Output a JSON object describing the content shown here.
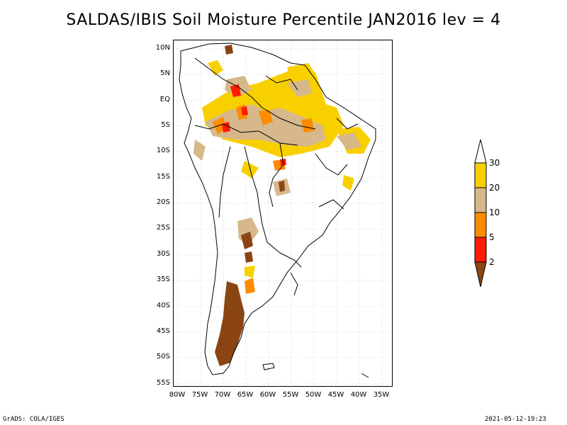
{
  "title": "SALDAS/IBIS Soil Moisture Percentile JAN2016 lev = 4",
  "map": {
    "lat_labels": [
      "10N",
      "5N",
      "EQ",
      "5S",
      "10S",
      "15S",
      "20S",
      "25S",
      "30S",
      "35S",
      "40S",
      "45S",
      "50S",
      "55S"
    ],
    "lon_labels": [
      "80W",
      "75W",
      "70W",
      "65W",
      "60W",
      "55W",
      "50W",
      "45W",
      "40W",
      "35W"
    ]
  },
  "legend": {
    "labels": [
      "30",
      "20",
      "10",
      "5",
      "2"
    ],
    "colors": {
      "above_30": "#ffffff",
      "20_30": "#f8d000",
      "10_20": "#d6b88a",
      "5_10": "#ff8c00",
      "2_5": "#ff1a00",
      "below_2": "#8b4513"
    }
  },
  "footer": {
    "left": "GrADS: COLA/IGES",
    "right": "2021-05-12-19:23"
  }
}
